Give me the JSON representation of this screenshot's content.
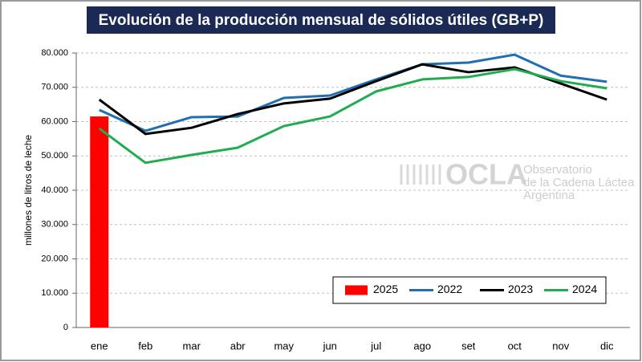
{
  "chart_data": {
    "type": "line",
    "title": "Evolución de la producción mensual de sólidos útiles (GB+P)",
    "y_label": "millones de litros de leche",
    "annotations": [
      "OCLA",
      "Observatorio",
      "de la Cadena Láctea",
      "Argentina"
    ],
    "categories": [
      "ene",
      "feb",
      "mar",
      "abr",
      "may",
      "jun",
      "jul",
      "ago",
      "set",
      "oct",
      "nov",
      "dic"
    ],
    "series": [
      {
        "name": "2025",
        "type": "bar",
        "color": "#ff0000",
        "values": [
          61500,
          null,
          null,
          null,
          null,
          null,
          null,
          null,
          null,
          null,
          null,
          null
        ]
      },
      {
        "name": "2022",
        "type": "line",
        "color": "#1f6fb2",
        "values": [
          63400,
          57300,
          61300,
          61500,
          66900,
          67600,
          72300,
          76700,
          77200,
          79500,
          73400,
          71600
        ]
      },
      {
        "name": "2023",
        "type": "line",
        "color": "#000000",
        "values": [
          66400,
          56400,
          58200,
          62200,
          65300,
          66700,
          71800,
          76700,
          74400,
          75800,
          71100,
          66400
        ]
      },
      {
        "name": "2024",
        "type": "line",
        "color": "#1fad4f",
        "values": [
          58000,
          48000,
          50300,
          52400,
          58700,
          61500,
          68800,
          72300,
          73000,
          75300,
          71800,
          69700
        ]
      }
    ],
    "ylim": [
      0,
      80000
    ],
    "yticks": [
      0,
      {
        "value": 10000,
        "label": "10.000"
      },
      {
        "value": 20000,
        "label": "20.000"
      },
      {
        "value": 30000,
        "label": "30.000"
      },
      {
        "value": 40000,
        "label": "40.000"
      },
      {
        "value": 50000,
        "label": "50.000"
      },
      {
        "value": 60000,
        "label": "60.000"
      },
      {
        "value": 70000,
        "label": "70.000"
      },
      {
        "value": 80000,
        "label": "80.000"
      }
    ],
    "grid": true,
    "legend": "bottom-right"
  }
}
